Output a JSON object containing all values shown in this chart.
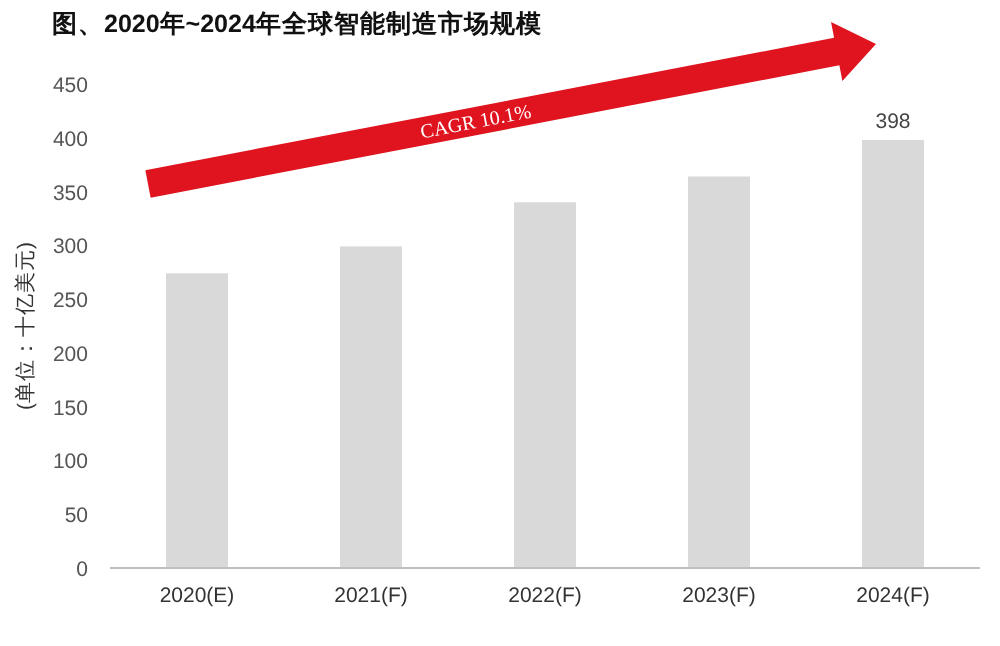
{
  "chart_data": {
    "type": "bar",
    "title": "图、2020年~2024年全球智能制造市场规模",
    "ylabel": "(单位：十亿美元)",
    "categories": [
      "2020(E)",
      "2021(F)",
      "2022(F)",
      "2023(F)",
      "2024(F)"
    ],
    "values": [
      274,
      299,
      340,
      364,
      398
    ],
    "value_labels": [
      null,
      null,
      null,
      null,
      "398"
    ],
    "color": "#d9d9d9",
    "ylim": [
      0,
      450
    ],
    "yticks": [
      0,
      50,
      100,
      150,
      200,
      250,
      300,
      350,
      400,
      450
    ],
    "annotations": [
      "CAGR 10.1%"
    ]
  }
}
